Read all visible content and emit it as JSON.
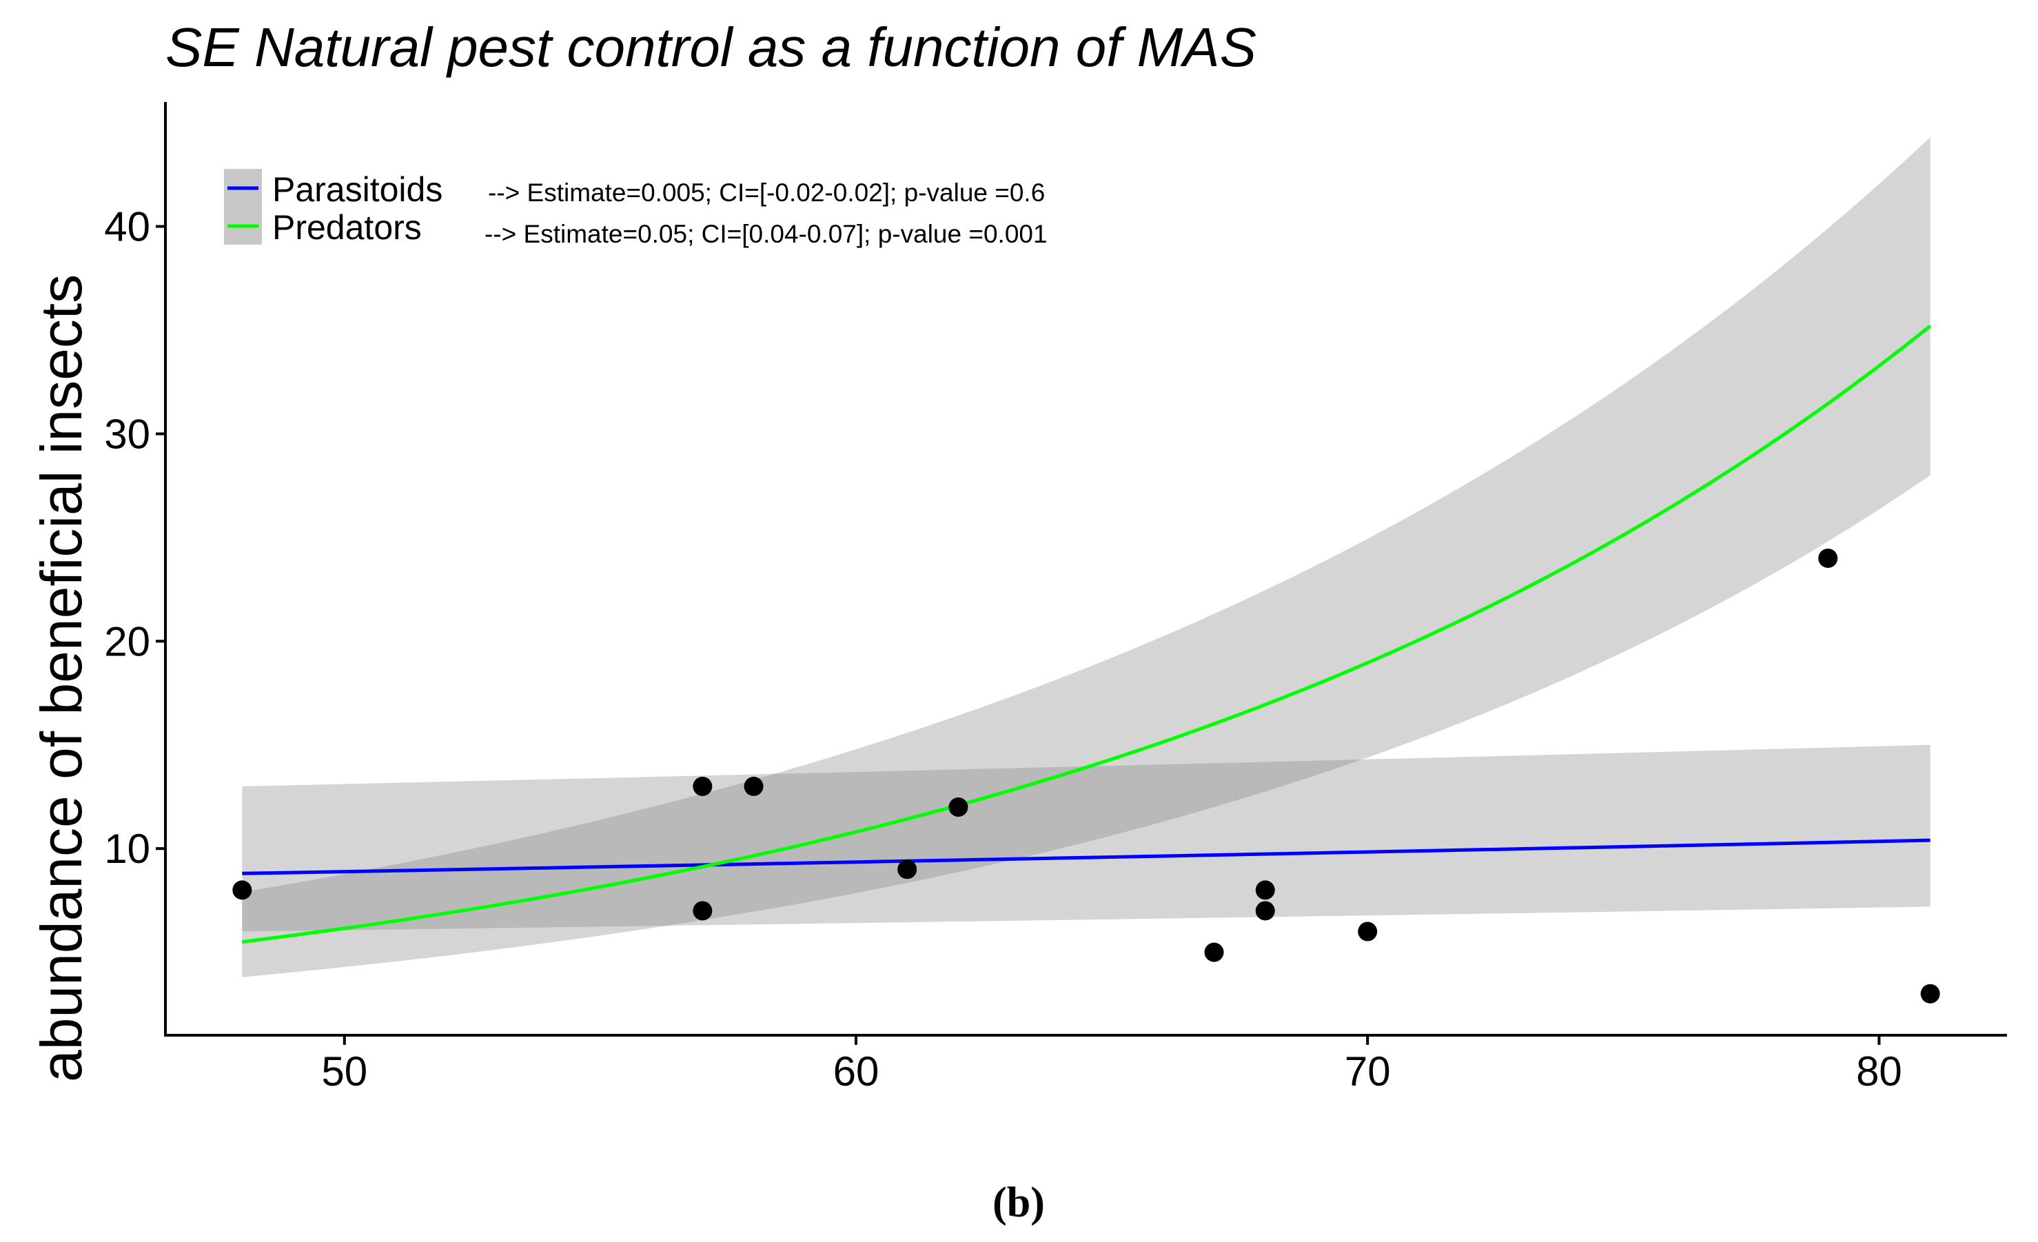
{
  "chart_data": {
    "type": "scatter",
    "title": "SE Natural pest control as a function of MAS",
    "xlabel": "",
    "ylabel": "abundance of beneficial insects",
    "xlim": [
      46.5,
      82.5
    ],
    "ylim": [
      1,
      46
    ],
    "x_ticks": [
      50,
      60,
      70,
      80
    ],
    "y_ticks": [
      10,
      20,
      30,
      40
    ],
    "grid": false,
    "points": [
      {
        "x": 48,
        "y": 8
      },
      {
        "x": 57,
        "y": 13
      },
      {
        "x": 57,
        "y": 7
      },
      {
        "x": 58,
        "y": 13
      },
      {
        "x": 61,
        "y": 9
      },
      {
        "x": 62,
        "y": 12
      },
      {
        "x": 67,
        "y": 5
      },
      {
        "x": 68,
        "y": 8
      },
      {
        "x": 68,
        "y": 7
      },
      {
        "x": 70,
        "y": 6
      },
      {
        "x": 79,
        "y": 24
      },
      {
        "x": 81,
        "y": 3
      }
    ],
    "series": [
      {
        "name": "Parasitoids",
        "color": "#0000ff",
        "note": "--> Estimate=0.005; CI=[-0.02-0.02]; p-value =0.6",
        "fit": "exponential",
        "x": [
          48,
          81
        ],
        "y": [
          8.8,
          10.4
        ],
        "ci_lower": [
          6.0,
          7.2
        ],
        "ci_upper": [
          13.0,
          15.0
        ]
      },
      {
        "name": "Predators",
        "color": "#00ff00",
        "note": "--> Estimate=0.05; CI=[0.04-0.07]; p-value =0.001",
        "fit": "exponential",
        "x": [
          48,
          81
        ],
        "y": [
          5.5,
          35.2
        ],
        "ci_lower": [
          3.8,
          28.0
        ],
        "ci_upper": [
          7.9,
          44.3
        ]
      }
    ],
    "legend_position": "top-left",
    "ribbon_color": "#c8c8c8",
    "point_color": "#000000"
  },
  "caption": "(b)"
}
